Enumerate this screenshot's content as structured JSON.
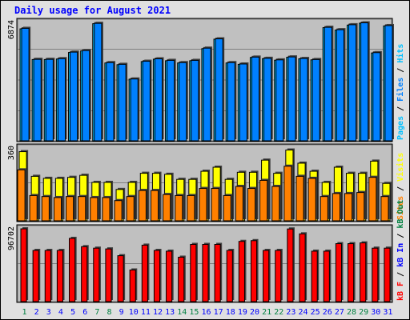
{
  "title": "Daily usage for August 2021",
  "colors": {
    "background": "#e0e0e0",
    "panel": "#c0c0c0",
    "title": "#0000ff",
    "pages": "#00c0ff",
    "files": "#0080ff",
    "hits": "#00c0ff",
    "visits": "#ffff00",
    "sites": "#ff8000",
    "kbin": "#0000ff",
    "kbout": "#008040",
    "kbf": "#ff0000",
    "weekday_label": "#0000ff",
    "weekend_label": "#008040"
  },
  "chart_data": {
    "type": "bar",
    "days": [
      "1",
      "2",
      "3",
      "4",
      "5",
      "6",
      "7",
      "8",
      "9",
      "10",
      "11",
      "12",
      "13",
      "14",
      "15",
      "16",
      "17",
      "18",
      "19",
      "20",
      "21",
      "22",
      "23",
      "24",
      "25",
      "26",
      "27",
      "28",
      "29",
      "30",
      "31"
    ],
    "weekend_days": [
      "1",
      "7",
      "8",
      "14",
      "15",
      "21",
      "22",
      "28",
      "29"
    ],
    "panels": [
      {
        "name": "hits-files-pages",
        "max_label": "6874",
        "ymax": 6874,
        "legend": [
          "Pages",
          "Files",
          "Hits"
        ],
        "series": [
          {
            "name": "Hits",
            "color": "#00c0ff",
            "values": [
              6500,
              4720,
              4720,
              4750,
              5130,
              5220,
              6800,
              4520,
              4420,
              3580,
              4600,
              4740,
              4650,
              4520,
              4650,
              5350,
              5900,
              4520,
              4440,
              4840,
              4770,
              4680,
              4850,
              4760,
              4700,
              6570,
              6430,
              6720,
              6830,
              5100,
              6670
            ]
          },
          {
            "name": "Files",
            "color": "#0080ff",
            "values": [
              6530,
              4730,
              4730,
              4770,
              5150,
              5240,
              6820,
              4540,
              4440,
              3590,
              4620,
              4760,
              4670,
              4540,
              4670,
              5380,
              5920,
              4540,
              4460,
              4860,
              4790,
              4700,
              4870,
              4780,
              4720,
              6590,
              6450,
              6740,
              6850,
              5120,
              6690
            ]
          },
          {
            "name": "Pages",
            "color": "#00c0ff",
            "values": [
              0,
              0,
              0,
              0,
              0,
              0,
              0,
              0,
              0,
              0,
              0,
              0,
              0,
              0,
              0,
              0,
              0,
              0,
              0,
              0,
              0,
              0,
              0,
              0,
              0,
              0,
              0,
              0,
              0,
              0,
              0
            ]
          }
        ]
      },
      {
        "name": "sites-visits",
        "max_label": "360",
        "ymax": 360,
        "legend": [
          "Sites",
          "Visits"
        ],
        "series": [
          {
            "name": "Visits",
            "color": "#ffff00",
            "values": [
              342,
              220,
              210,
              210,
              215,
              225,
              190,
              190,
              155,
              190,
              235,
              235,
              230,
              205,
              205,
              245,
              265,
              205,
              240,
              240,
              300,
              235,
              350,
              285,
              245,
              190,
              265,
              235,
              235,
              295,
              185
            ]
          },
          {
            "name": "Sites",
            "color": "#ff8000",
            "values": [
              252,
              125,
              120,
              115,
              120,
              120,
              115,
              115,
              100,
              120,
              150,
              150,
              130,
              125,
              125,
              160,
              160,
              125,
              170,
              160,
              200,
              170,
              270,
              220,
              210,
              120,
              135,
              135,
              140,
              215,
              120
            ]
          }
        ]
      },
      {
        "name": "kbytes",
        "max_label": "96702",
        "ymax": 96702,
        "legend": [
          "kB F",
          "kB In",
          "kB Out"
        ],
        "series": [
          {
            "name": "kB F",
            "color": "#ff0000",
            "values": [
              96702,
              68000,
              68000,
              68000,
              84000,
              73000,
              71000,
              70000,
              61000,
              42000,
              75000,
              68000,
              67000,
              59000,
              76000,
              76000,
              76000,
              68000,
              80000,
              81000,
              68000,
              68000,
              96500,
              90000,
              67000,
              67000,
              77000,
              77000,
              78000,
              71000,
              71000
            ]
          }
        ]
      }
    ]
  }
}
